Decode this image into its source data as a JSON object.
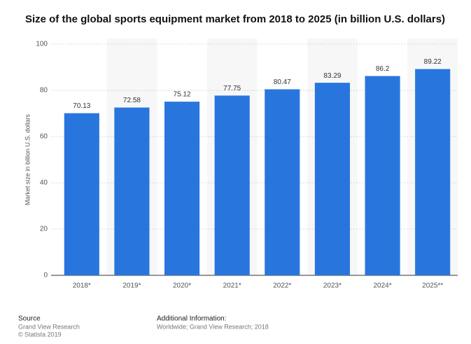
{
  "chart_data": {
    "type": "bar",
    "title": "Size of the global sports equipment market from 2018 to 2025 (in billion U.S. dollars)",
    "y_label": "Market size in billion U.S. dollars",
    "categories": [
      "2018*",
      "2019*",
      "2020*",
      "2021*",
      "2022*",
      "2023*",
      "2024*",
      "2025**"
    ],
    "values": [
      70.13,
      72.58,
      75.12,
      77.75,
      80.47,
      83.29,
      86.2,
      89.22
    ],
    "color": "#2876dd",
    "ylim": [
      0,
      100
    ],
    "yticks": [
      0,
      20,
      40,
      60,
      80,
      100
    ],
    "grid": true
  },
  "footer": {
    "source_heading": "Source",
    "source": "Grand View Research",
    "copyright": "© Statista 2019",
    "info_heading": "Additional Information:",
    "info": "Worldwide; Grand View Research; 2018"
  }
}
